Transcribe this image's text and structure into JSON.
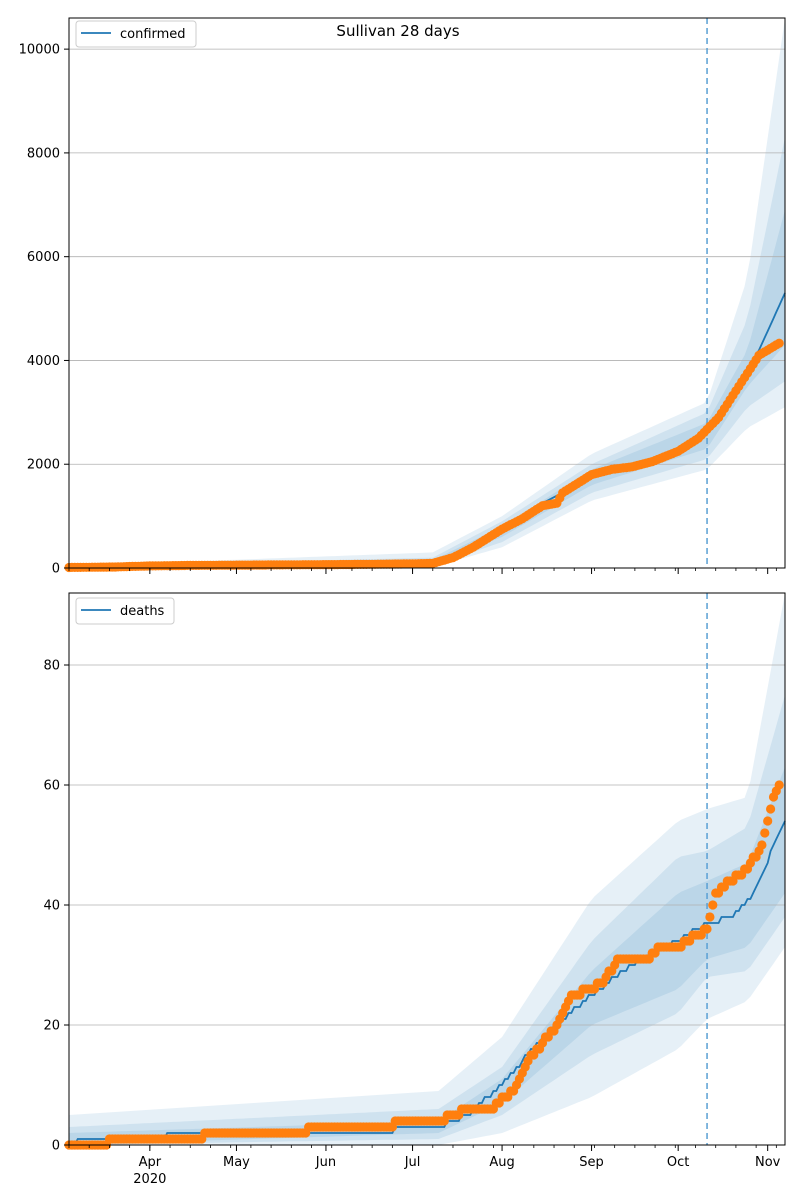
{
  "figure": {
    "title": "Sullivan 28 days"
  },
  "chart_data": [
    {
      "type": "line",
      "legend": [
        "confirmed"
      ],
      "legend_placement": "top-left",
      "grid": "y",
      "xlim": [
        "2020-03-04",
        "2020-11-07"
      ],
      "ylim": [
        0,
        10600
      ],
      "yticks": [
        0,
        2000,
        4000,
        6000,
        8000,
        10000
      ],
      "ytick_labels": [
        "0",
        "2000",
        "4000",
        "6000",
        "8000",
        "10000"
      ],
      "forecast_start": "2020-10-11",
      "colors": {
        "model": "#1f77b4",
        "observed": "#ff7f0e",
        "marker_line": "#5a9fd4"
      },
      "series": [
        {
          "name": "confirmed",
          "x": [
            "2020-03-04",
            "2020-03-20",
            "2020-04-01",
            "2020-04-15",
            "2020-05-01",
            "2020-05-15",
            "2020-06-01",
            "2020-06-15",
            "2020-07-01",
            "2020-07-08",
            "2020-07-15",
            "2020-07-22",
            "2020-08-01",
            "2020-08-08",
            "2020-08-15",
            "2020-08-22",
            "2020-09-01",
            "2020-09-08",
            "2020-09-15",
            "2020-09-22",
            "2020-10-01",
            "2020-10-08",
            "2020-10-15",
            "2020-10-22",
            "2020-10-29",
            "2020-11-07"
          ],
          "values": [
            10,
            20,
            40,
            50,
            55,
            60,
            65,
            70,
            80,
            90,
            180,
            370,
            700,
            1000,
            1250,
            1450,
            1750,
            1900,
            2000,
            2100,
            2250,
            2450,
            2900,
            3500,
            4200,
            5300
          ]
        },
        {
          "name": "observed",
          "x": [
            "2020-03-04",
            "2020-03-20",
            "2020-04-01",
            "2020-04-15",
            "2020-05-01",
            "2020-05-15",
            "2020-06-01",
            "2020-06-15",
            "2020-07-01",
            "2020-07-08",
            "2020-07-15",
            "2020-07-22",
            "2020-08-01",
            "2020-08-08",
            "2020-08-15",
            "2020-08-20",
            "2020-08-22",
            "2020-09-01",
            "2020-09-08",
            "2020-09-15",
            "2020-09-22",
            "2020-10-01",
            "2020-10-08",
            "2020-10-15",
            "2020-10-22",
            "2020-10-29",
            "2020-11-07"
          ],
          "values": [
            10,
            20,
            40,
            50,
            55,
            60,
            65,
            70,
            80,
            90,
            200,
            400,
            750,
            950,
            1200,
            1250,
            1450,
            1800,
            1900,
            1950,
            2050,
            2250,
            2500,
            2900,
            3500,
            4100,
            4400
          ]
        }
      ],
      "bands": [
        {
          "x": [
            "2020-03-04",
            "2020-07-08",
            "2020-08-01",
            "2020-09-01",
            "2020-10-11",
            "2020-10-25",
            "2020-11-07"
          ],
          "lower": [
            0,
            20,
            400,
            1300,
            1900,
            2700,
            3100
          ],
          "upper": [
            40,
            300,
            1000,
            2200,
            3200,
            5600,
            10600
          ]
        },
        {
          "x": [
            "2020-03-04",
            "2020-07-08",
            "2020-08-01",
            "2020-09-01",
            "2020-10-11",
            "2020-10-25",
            "2020-11-07"
          ],
          "lower": [
            0,
            40,
            500,
            1450,
            2100,
            3100,
            3600
          ],
          "upper": [
            30,
            200,
            900,
            2000,
            3000,
            4800,
            8300
          ]
        },
        {
          "x": [
            "2020-03-04",
            "2020-07-08",
            "2020-08-01",
            "2020-09-01",
            "2020-10-11",
            "2020-10-25",
            "2020-11-07"
          ],
          "lower": [
            0,
            60,
            600,
            1600,
            2300,
            3500,
            4300
          ],
          "upper": [
            20,
            150,
            800,
            1900,
            2800,
            4200,
            6900
          ]
        }
      ]
    },
    {
      "type": "line",
      "legend": [
        "deaths"
      ],
      "legend_placement": "top-left",
      "grid": "y",
      "xlim": [
        "2020-03-04",
        "2020-11-07"
      ],
      "ylim": [
        0,
        92
      ],
      "yticks": [
        0,
        20,
        40,
        60,
        80
      ],
      "ytick_labels": [
        "0",
        "20",
        "40",
        "60",
        "80"
      ],
      "xticks": [
        "2020-04-01",
        "2020-05-01",
        "2020-06-01",
        "2020-07-01",
        "2020-08-01",
        "2020-09-01",
        "2020-10-01",
        "2020-11-01"
      ],
      "xtick_labels": [
        "Apr",
        "May",
        "Jun",
        "Jul",
        "Aug",
        "Sep",
        "Oct",
        "Nov"
      ],
      "xtick_sublabel": "2020",
      "forecast_start": "2020-10-11",
      "colors": {
        "model": "#1f77b4",
        "observed": "#ff7f0e",
        "marker_line": "#5a9fd4"
      },
      "series": [
        {
          "name": "deaths",
          "x": [
            "2020-03-04",
            "2020-03-09",
            "2020-04-01",
            "2020-04-13",
            "2020-05-10",
            "2020-06-10",
            "2020-07-10",
            "2020-07-20",
            "2020-08-01",
            "2020-08-15",
            "2020-09-01",
            "2020-09-15",
            "2020-10-01",
            "2020-10-11",
            "2020-10-20",
            "2020-10-27",
            "2020-11-07"
          ],
          "values": [
            0,
            1,
            1,
            2,
            2,
            2,
            3,
            5,
            10,
            18,
            25,
            30,
            34,
            37,
            38,
            42,
            54
          ]
        },
        {
          "name": "observed",
          "x": [
            "2020-03-04",
            "2020-03-31",
            "2020-05-10",
            "2020-07-10",
            "2020-07-20",
            "2020-07-28",
            "2020-08-05",
            "2020-08-10",
            "2020-08-20",
            "2020-08-25",
            "2020-09-01",
            "2020-09-05",
            "2020-09-10",
            "2020-09-20",
            "2020-09-25",
            "2020-10-01",
            "2020-10-11",
            "2020-10-14",
            "2020-10-19",
            "2020-10-25",
            "2020-10-30",
            "2020-11-03",
            "2020-11-07"
          ],
          "values": [
            0,
            1,
            2,
            4,
            6,
            6,
            9,
            14,
            20,
            25,
            26,
            27,
            31,
            31,
            33,
            33,
            36,
            42,
            44,
            46,
            50,
            58,
            61
          ]
        }
      ],
      "bands": [
        {
          "x": [
            "2020-03-04",
            "2020-07-10",
            "2020-08-01",
            "2020-09-01",
            "2020-10-01",
            "2020-10-11",
            "2020-10-25",
            "2020-11-07"
          ],
          "lower": [
            0,
            0,
            2,
            8,
            16,
            21,
            24,
            33
          ],
          "upper": [
            5,
            9,
            18,
            41,
            54,
            56,
            58,
            92
          ]
        },
        {
          "x": [
            "2020-03-04",
            "2020-07-10",
            "2020-08-01",
            "2020-09-01",
            "2020-10-01",
            "2020-10-11",
            "2020-10-25",
            "2020-11-07"
          ],
          "lower": [
            0,
            1,
            5,
            15,
            22,
            28,
            29,
            38
          ],
          "upper": [
            3,
            6,
            13,
            34,
            48,
            49,
            53,
            75
          ]
        },
        {
          "x": [
            "2020-03-04",
            "2020-07-10",
            "2020-08-01",
            "2020-09-01",
            "2020-10-01",
            "2020-10-11",
            "2020-10-25",
            "2020-11-07"
          ],
          "lower": [
            0,
            2,
            7,
            20,
            26,
            31,
            33,
            42
          ],
          "upper": [
            2,
            4,
            11,
            29,
            42,
            44,
            47,
            63
          ]
        }
      ]
    }
  ]
}
